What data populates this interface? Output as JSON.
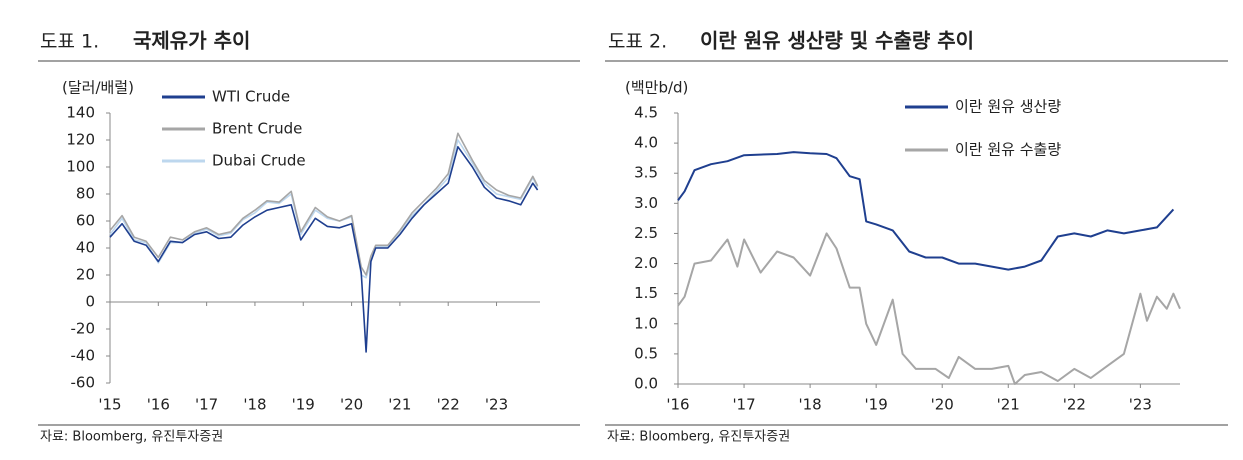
{
  "chart_data": [
    {
      "type": "line",
      "label": "도표 1.",
      "title": "국제유가 추이",
      "y_label": "(달러/배럴)",
      "source": "자료: Bloomberg, 유진투자증권",
      "x": [
        2015,
        2015.25,
        2015.5,
        2015.75,
        2016,
        2016.25,
        2016.5,
        2016.75,
        2017,
        2017.25,
        2017.5,
        2017.75,
        2018,
        2018.25,
        2018.5,
        2018.75,
        2018.95,
        2019.25,
        2019.5,
        2019.75,
        2020,
        2020.2,
        2020.3,
        2020.4,
        2020.5,
        2020.75,
        2021,
        2021.25,
        2021.5,
        2021.75,
        2022,
        2022.2,
        2022.5,
        2022.75,
        2023,
        2023.25,
        2023.5,
        2023.75,
        2023.85
      ],
      "series": [
        {
          "name": "WTI Crude",
          "color": "#1f3f8f",
          "values": [
            48,
            58,
            45,
            42,
            30,
            45,
            44,
            50,
            52,
            47,
            48,
            57,
            63,
            68,
            70,
            72,
            46,
            62,
            56,
            55,
            58,
            22,
            -37,
            30,
            40,
            40,
            50,
            62,
            72,
            80,
            88,
            115,
            100,
            85,
            77,
            75,
            72,
            88,
            83
          ]
        },
        {
          "name": "Brent Crude",
          "color": "#a6a6a6",
          "values": [
            53,
            64,
            48,
            45,
            33,
            48,
            46,
            52,
            55,
            50,
            52,
            62,
            68,
            75,
            74,
            82,
            52,
            70,
            63,
            60,
            64,
            26,
            20,
            34,
            42,
            42,
            53,
            66,
            75,
            84,
            95,
            125,
            105,
            90,
            83,
            79,
            77,
            93,
            86
          ]
        },
        {
          "name": "Dubai Crude",
          "color": "#bdd7ee",
          "values": [
            50,
            62,
            46,
            44,
            29,
            44,
            44,
            51,
            54,
            49,
            51,
            61,
            66,
            74,
            73,
            80,
            50,
            68,
            62,
            60,
            63,
            20,
            18,
            30,
            41,
            41,
            52,
            64,
            72,
            82,
            92,
            120,
            103,
            88,
            80,
            78,
            76,
            92,
            85
          ]
        }
      ],
      "xlim": [
        2015,
        2023.9
      ],
      "xticks": [
        {
          "value": 2015,
          "label": "'15"
        },
        {
          "value": 2016,
          "label": "'16"
        },
        {
          "value": 2017,
          "label": "'17"
        },
        {
          "value": 2018,
          "label": "'18"
        },
        {
          "value": 2019,
          "label": "'19"
        },
        {
          "value": 2020,
          "label": "'20"
        },
        {
          "value": 2021,
          "label": "'21"
        },
        {
          "value": 2022,
          "label": "'22"
        },
        {
          "value": 2023,
          "label": "'23"
        }
      ],
      "ylim": [
        -60,
        140
      ],
      "yticks": [
        -60,
        -40,
        -20,
        0,
        20,
        40,
        60,
        80,
        100,
        120,
        140
      ],
      "legend": "top-left"
    },
    {
      "type": "line",
      "label": "도표 2.",
      "title": "이란 원유 생산량 및 수출량 추이",
      "y_label": "(백만b/d)",
      "source": "자료: Bloomberg, 유진투자증권",
      "series": [
        {
          "name": "이란 원유 생산량",
          "color": "#1f3f8f",
          "x": [
            2016,
            2016.1,
            2016.25,
            2016.5,
            2016.75,
            2017,
            2017.5,
            2017.75,
            2018,
            2018.25,
            2018.4,
            2018.6,
            2018.75,
            2018.85,
            2019,
            2019.25,
            2019.5,
            2019.75,
            2020,
            2020.25,
            2020.5,
            2020.75,
            2021,
            2021.25,
            2021.5,
            2021.75,
            2022,
            2022.25,
            2022.5,
            2022.75,
            2023,
            2023.25,
            2023.5
          ],
          "values": [
            3.05,
            3.2,
            3.55,
            3.65,
            3.7,
            3.8,
            3.82,
            3.85,
            3.83,
            3.82,
            3.75,
            3.45,
            3.4,
            2.7,
            2.65,
            2.55,
            2.2,
            2.1,
            2.1,
            2.0,
            2.0,
            1.95,
            1.9,
            1.95,
            2.05,
            2.45,
            2.5,
            2.45,
            2.55,
            2.5,
            2.55,
            2.6,
            2.9
          ]
        },
        {
          "name": "이란 원유 수출량",
          "color": "#a6a6a6",
          "x": [
            2016,
            2016.1,
            2016.25,
            2016.5,
            2016.75,
            2016.9,
            2017,
            2017.25,
            2017.5,
            2017.75,
            2018,
            2018.25,
            2018.4,
            2018.6,
            2018.75,
            2018.85,
            2019,
            2019.25,
            2019.4,
            2019.6,
            2019.9,
            2020.1,
            2020.25,
            2020.5,
            2020.75,
            2021,
            2021.1,
            2021.25,
            2021.5,
            2021.75,
            2022,
            2022.25,
            2022.5,
            2022.75,
            2023,
            2023.1,
            2023.25,
            2023.4,
            2023.5,
            2023.6
          ],
          "values": [
            1.3,
            1.45,
            2.0,
            2.05,
            2.4,
            1.95,
            2.4,
            1.85,
            2.2,
            2.1,
            1.8,
            2.5,
            2.25,
            1.6,
            1.6,
            1.0,
            0.65,
            1.4,
            0.5,
            0.25,
            0.25,
            0.1,
            0.45,
            0.25,
            0.25,
            0.3,
            0.0,
            0.15,
            0.2,
            0.05,
            0.25,
            0.1,
            0.3,
            0.5,
            1.5,
            1.05,
            1.45,
            1.25,
            1.5,
            1.25
          ]
        }
      ],
      "xlim": [
        2016,
        2023.6
      ],
      "xticks": [
        {
          "value": 2016,
          "label": "'16"
        },
        {
          "value": 2017,
          "label": "'17"
        },
        {
          "value": 2018,
          "label": "'18"
        },
        {
          "value": 2019,
          "label": "'19"
        },
        {
          "value": 2020,
          "label": "'20"
        },
        {
          "value": 2021,
          "label": "'21"
        },
        {
          "value": 2022,
          "label": "'22"
        },
        {
          "value": 2023,
          "label": "'23"
        }
      ],
      "ylim": [
        0,
        4.5
      ],
      "yticks": [
        {
          "value": 0,
          "label": "0.0"
        },
        0.5,
        {
          "value": 1,
          "label": "1.0"
        },
        1.5,
        {
          "value": 2,
          "label": "2.0"
        },
        2.5,
        {
          "value": 3,
          "label": "3.0"
        },
        3.5,
        {
          "value": 4,
          "label": "4.0"
        },
        4.5
      ],
      "legend": "top-center"
    }
  ]
}
